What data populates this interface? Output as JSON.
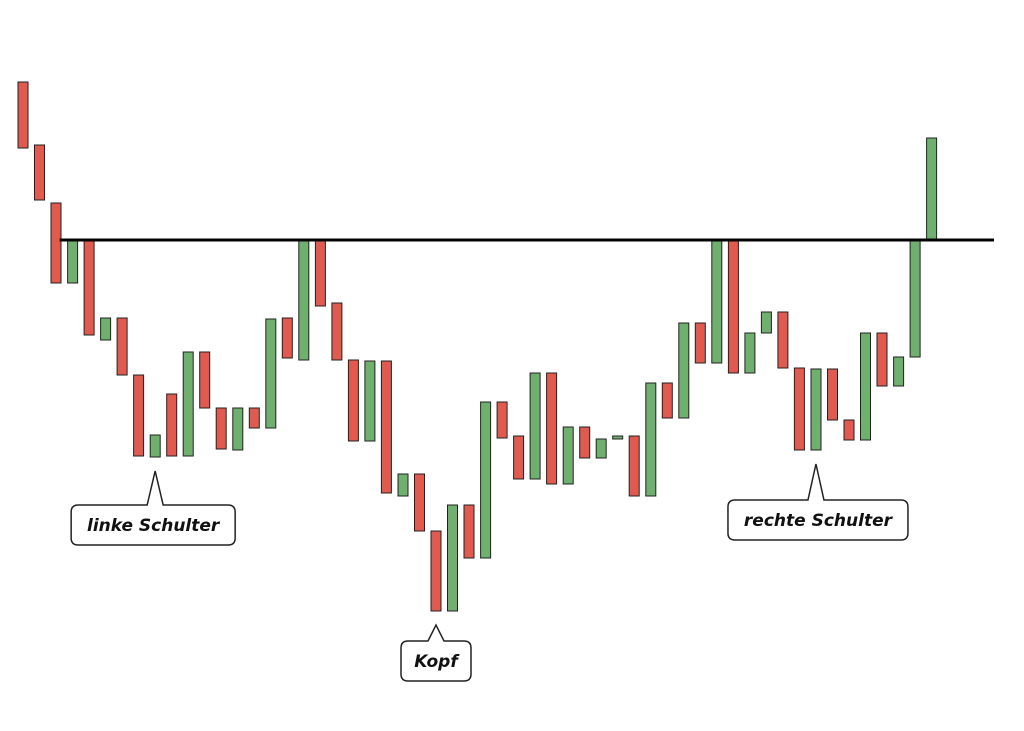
{
  "chart_data": {
    "type": "candlestick",
    "grid": false,
    "colors": {
      "up": "#6fb06f",
      "down": "#e05a4f",
      "outline": "#222222",
      "neckline": "#000000"
    },
    "candles": [
      {
        "o": 82,
        "c": 148,
        "dir": "down"
      },
      {
        "o": 145,
        "c": 200,
        "dir": "down"
      },
      {
        "o": 203,
        "c": 283,
        "dir": "down"
      },
      {
        "o": 283,
        "c": 240,
        "dir": "up"
      },
      {
        "o": 240,
        "c": 335,
        "dir": "down"
      },
      {
        "o": 340,
        "c": 318,
        "dir": "up"
      },
      {
        "o": 318,
        "c": 375,
        "dir": "down"
      },
      {
        "o": 375,
        "c": 456,
        "dir": "down"
      },
      {
        "o": 457,
        "c": 435,
        "dir": "up"
      },
      {
        "o": 394,
        "c": 456,
        "dir": "down"
      },
      {
        "o": 456,
        "c": 352,
        "dir": "up"
      },
      {
        "o": 352,
        "c": 408,
        "dir": "down"
      },
      {
        "o": 408,
        "c": 449,
        "dir": "down"
      },
      {
        "o": 450,
        "c": 408,
        "dir": "up"
      },
      {
        "o": 408,
        "c": 428,
        "dir": "down"
      },
      {
        "o": 428,
        "c": 319,
        "dir": "up"
      },
      {
        "o": 318,
        "c": 358,
        "dir": "down"
      },
      {
        "o": 360,
        "c": 240,
        "dir": "up"
      },
      {
        "o": 240,
        "c": 306,
        "dir": "down"
      },
      {
        "o": 303,
        "c": 360,
        "dir": "down"
      },
      {
        "o": 360,
        "c": 441,
        "dir": "down"
      },
      {
        "o": 441,
        "c": 361,
        "dir": "up"
      },
      {
        "o": 361,
        "c": 493,
        "dir": "down"
      },
      {
        "o": 496,
        "c": 474,
        "dir": "up"
      },
      {
        "o": 474,
        "c": 531,
        "dir": "down"
      },
      {
        "o": 531,
        "c": 611,
        "dir": "down"
      },
      {
        "o": 611,
        "c": 505,
        "dir": "up"
      },
      {
        "o": 505,
        "c": 558,
        "dir": "down"
      },
      {
        "o": 558,
        "c": 402,
        "dir": "up"
      },
      {
        "o": 402,
        "c": 438,
        "dir": "down"
      },
      {
        "o": 436,
        "c": 479,
        "dir": "down"
      },
      {
        "o": 479,
        "c": 373,
        "dir": "up"
      },
      {
        "o": 373,
        "c": 484,
        "dir": "down"
      },
      {
        "o": 484,
        "c": 427,
        "dir": "up"
      },
      {
        "o": 427,
        "c": 458,
        "dir": "down"
      },
      {
        "o": 458,
        "c": 439,
        "dir": "up"
      },
      {
        "o": 439,
        "c": 436,
        "dir": "up"
      },
      {
        "o": 436,
        "c": 496,
        "dir": "down"
      },
      {
        "o": 496,
        "c": 383,
        "dir": "up"
      },
      {
        "o": 383,
        "c": 418,
        "dir": "down"
      },
      {
        "o": 418,
        "c": 323,
        "dir": "up"
      },
      {
        "o": 323,
        "c": 363,
        "dir": "down"
      },
      {
        "o": 363,
        "c": 240,
        "dir": "up"
      },
      {
        "o": 240,
        "c": 373,
        "dir": "down"
      },
      {
        "o": 373,
        "c": 333,
        "dir": "up"
      },
      {
        "o": 333,
        "c": 312,
        "dir": "up"
      },
      {
        "o": 312,
        "c": 368,
        "dir": "down"
      },
      {
        "o": 368,
        "c": 450,
        "dir": "down"
      },
      {
        "o": 450,
        "c": 369,
        "dir": "up"
      },
      {
        "o": 369,
        "c": 420,
        "dir": "down"
      },
      {
        "o": 420,
        "c": 440,
        "dir": "down"
      },
      {
        "o": 440,
        "c": 333,
        "dir": "up"
      },
      {
        "o": 333,
        "c": 386,
        "dir": "down"
      },
      {
        "o": 386,
        "c": 357,
        "dir": "up"
      },
      {
        "o": 357,
        "c": 240,
        "dir": "up"
      },
      {
        "o": 240,
        "c": 138,
        "dir": "up"
      }
    ],
    "neckline": {
      "value": 240,
      "from_index": 3
    },
    "annotations": [
      {
        "label": "linke Schulter",
        "candle_index": 8
      },
      {
        "label": "Kopf",
        "candle_index": 25
      },
      {
        "label": "rechte Schulter",
        "candle_index": 48
      }
    ]
  }
}
